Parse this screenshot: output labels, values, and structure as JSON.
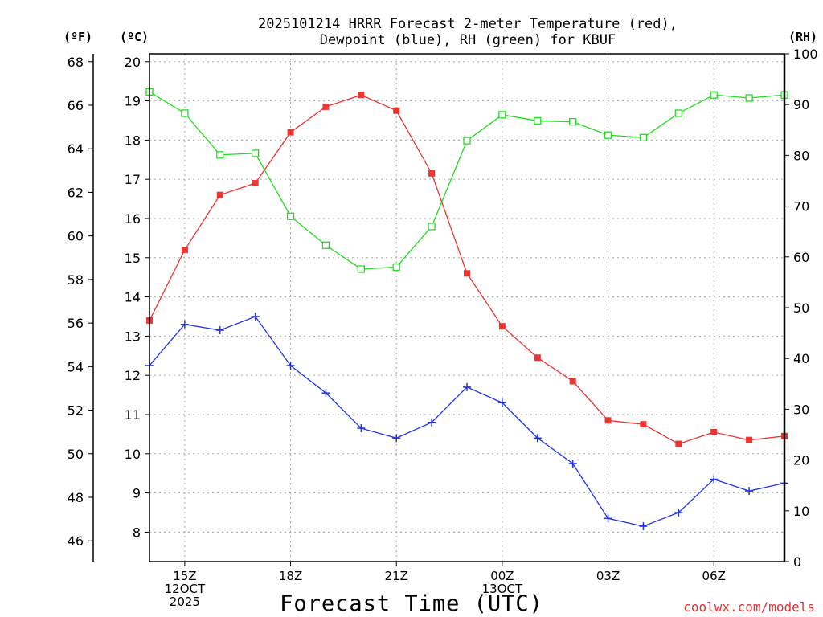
{
  "chart_data": {
    "type": "line",
    "title_line1": "2025101214 HRRR Forecast 2-meter Temperature (red),",
    "title_line2": "Dewpoint (blue), RH (green) for KBUF",
    "xlabel": "Forecast Time (UTC)",
    "credit": "coolwx.com/models",
    "unit_labels": {
      "fahrenheit": "(ºF)",
      "celsius": "(ºC)",
      "rh": "(RH)"
    },
    "hours": [
      14,
      15,
      16,
      17,
      18,
      19,
      20,
      21,
      22,
      23,
      24,
      25,
      26,
      27,
      28,
      29,
      30,
      31,
      32
    ],
    "xlim": [
      14,
      32
    ],
    "x_ticks": [
      {
        "hour": 15,
        "lines": [
          "15Z",
          "12OCT",
          "2025"
        ]
      },
      {
        "hour": 18,
        "lines": [
          "18Z"
        ]
      },
      {
        "hour": 21,
        "lines": [
          "21Z"
        ]
      },
      {
        "hour": 24,
        "lines": [
          "00Z",
          "13OCT"
        ]
      },
      {
        "hour": 27,
        "lines": [
          "03Z"
        ]
      },
      {
        "hour": 30,
        "lines": [
          "06Z"
        ]
      }
    ],
    "celsius_axis": {
      "range": [
        7.25,
        20.2
      ],
      "ticks": [
        8,
        9,
        10,
        11,
        12,
        13,
        14,
        15,
        16,
        17,
        18,
        19,
        20
      ]
    },
    "fahrenheit_axis": {
      "ticks": [
        46,
        48,
        50,
        52,
        54,
        56,
        58,
        60,
        62,
        64,
        66,
        68
      ]
    },
    "rh_axis": {
      "range": [
        0,
        100
      ],
      "ticks": [
        0,
        10,
        20,
        30,
        40,
        50,
        60,
        70,
        80,
        90,
        100
      ]
    },
    "series": [
      {
        "name": "2-meter Temperature",
        "color": "#ee3333",
        "marker": "filled-square",
        "axis": "celsius",
        "values": [
          13.4,
          15.2,
          16.6,
          16.9,
          18.2,
          18.85,
          19.15,
          18.75,
          17.15,
          14.6,
          13.25,
          12.45,
          11.85,
          10.85,
          10.75,
          10.25,
          10.55,
          10.35,
          10.45
        ]
      },
      {
        "name": "Dewpoint",
        "color": "#2233ee",
        "marker": "plus",
        "axis": "celsius",
        "values": [
          12.25,
          13.3,
          13.15,
          13.5,
          12.25,
          11.55,
          10.65,
          10.4,
          10.8,
          11.7,
          11.3,
          10.4,
          9.75,
          8.35,
          8.15,
          8.5,
          9.35,
          9.05,
          9.25
        ]
      },
      {
        "name": "Relative Humidity",
        "color": "#22dd22",
        "marker": "open-square",
        "axis": "rh",
        "values": [
          92.5,
          88.3,
          80.1,
          80.4,
          68.0,
          62.3,
          57.6,
          58.0,
          66.0,
          82.9,
          88.0,
          86.8,
          86.6,
          84.0,
          83.5,
          88.3,
          91.9,
          91.3,
          91.9
        ]
      }
    ]
  }
}
